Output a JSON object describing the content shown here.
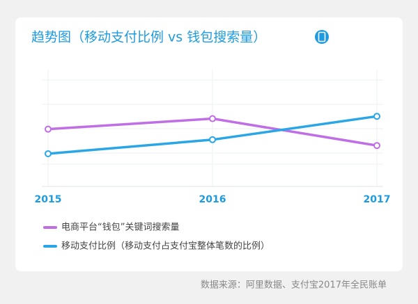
{
  "chart_data": {
    "type": "line",
    "title": "趋势图（移动支付比例 vs 钱包搜索量）",
    "source": "数据来源：阿里数据、支付宝2017年全民账单",
    "categories": [
      "2015",
      "2016",
      "2017"
    ],
    "ylim": [
      0,
      100
    ],
    "series": [
      {
        "name": "电商平台“钱包”关键词搜索量",
        "color": "#c06ee6",
        "values": [
          49,
          58,
          35
        ]
      },
      {
        "name": "移动支付比例（移动支付占支付宝整体笔数的比例）",
        "color": "#2aa6e6",
        "values": [
          28,
          40,
          60
        ]
      }
    ]
  }
}
